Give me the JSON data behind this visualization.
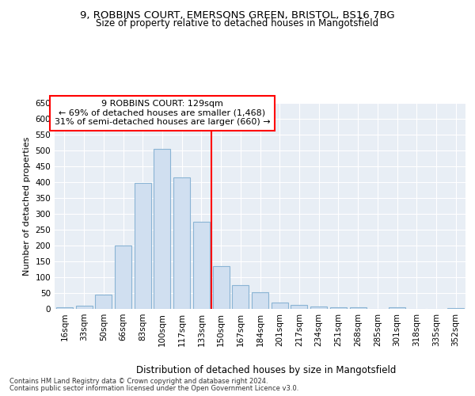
{
  "title_line1": "9, ROBBINS COURT, EMERSONS GREEN, BRISTOL, BS16 7BG",
  "title_line2": "Size of property relative to detached houses in Mangotsfield",
  "xlabel": "Distribution of detached houses by size in Mangotsfield",
  "ylabel": "Number of detached properties",
  "categories": [
    "16sqm",
    "33sqm",
    "50sqm",
    "66sqm",
    "83sqm",
    "100sqm",
    "117sqm",
    "133sqm",
    "150sqm",
    "167sqm",
    "184sqm",
    "201sqm",
    "217sqm",
    "234sqm",
    "251sqm",
    "268sqm",
    "285sqm",
    "301sqm",
    "318sqm",
    "335sqm",
    "352sqm"
  ],
  "values": [
    5,
    10,
    46,
    200,
    398,
    505,
    415,
    276,
    136,
    75,
    52,
    21,
    12,
    8,
    5,
    5,
    0,
    5,
    0,
    0,
    3
  ],
  "bar_color": "#d0dff0",
  "bar_edge_color": "#8ab4d4",
  "vline_x": 7.5,
  "vline_color": "red",
  "annotation_title": "9 ROBBINS COURT: 129sqm",
  "annotation_line2": "← 69% of detached houses are smaller (1,468)",
  "annotation_line3": "31% of semi-detached houses are larger (660) →",
  "annotation_box_color": "white",
  "annotation_box_edge_color": "red",
  "ylim": [
    0,
    650
  ],
  "yticks": [
    0,
    50,
    100,
    150,
    200,
    250,
    300,
    350,
    400,
    450,
    500,
    550,
    600,
    650
  ],
  "plot_bg_color": "#e8eef5",
  "footnote1": "Contains HM Land Registry data © Crown copyright and database right 2024.",
  "footnote2": "Contains public sector information licensed under the Open Government Licence v3.0."
}
